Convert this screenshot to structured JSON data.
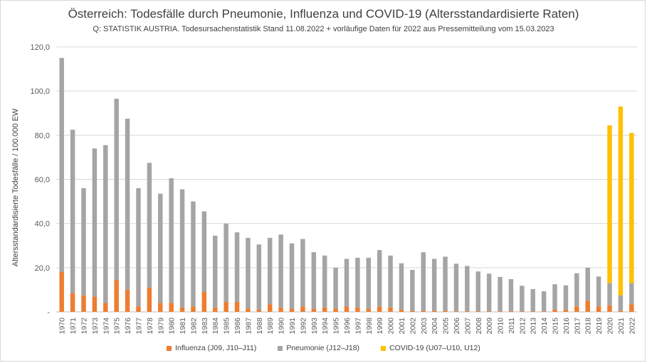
{
  "title": "Österreich: Todesfälle durch Pneumonie, Influenza und COVID-19 (Altersstandardisierte Raten)",
  "subtitle": "Q: STATISTIK AUSTRIA. Todesursachenstatistik Stand 11.08.2022 + vorläufige Daten für 2022 aus Pressemitteilung vom 15.03.2023",
  "chart_data": {
    "type": "bar",
    "stacked": true,
    "ylabel": "Altersstandardisierte Todesfälle / 100.000 EW",
    "xlabel": "",
    "ylim": [
      0,
      120
    ],
    "yticks": [
      "-",
      "20,0",
      "40,0",
      "60,0",
      "80,0",
      "100,0",
      "120,0"
    ],
    "grid": true,
    "legend_position": "bottom",
    "categories": [
      "1970",
      "1971",
      "1972",
      "1973",
      "1974",
      "1975",
      "1976",
      "1977",
      "1978",
      "1979",
      "1980",
      "1981",
      "1982",
      "1983",
      "1984",
      "1985",
      "1986",
      "1987",
      "1988",
      "1989",
      "1990",
      "1991",
      "1992",
      "1993",
      "1994",
      "1995",
      "1996",
      "1997",
      "1998",
      "1999",
      "2000",
      "2001",
      "2002",
      "2003",
      "2004",
      "2005",
      "2006",
      "2007",
      "2008",
      "2009",
      "2010",
      "2011",
      "2012",
      "2013",
      "2014",
      "2015",
      "2016",
      "2017",
      "2018",
      "2019",
      "2020",
      "2021",
      "2022"
    ],
    "series": [
      {
        "name": "Influenza (J09, J10–J11)",
        "color": "#ed7d31",
        "values": [
          18.0,
          8.5,
          7.5,
          7.0,
          4.0,
          14.5,
          10.0,
          2.5,
          11.0,
          4.0,
          4.0,
          2.0,
          2.5,
          9.0,
          2.0,
          4.5,
          4.5,
          1.5,
          1.0,
          3.5,
          2.0,
          1.5,
          2.5,
          1.5,
          2.0,
          1.5,
          2.5,
          2.0,
          1.5,
          2.5,
          2.0,
          1.0,
          0.5,
          0.5,
          0.5,
          0.5,
          0.3,
          0.3,
          0.3,
          0.3,
          0.3,
          0.3,
          0.3,
          0.3,
          0.3,
          1.0,
          1.0,
          2.5,
          5.0,
          2.5,
          3.0,
          0.5,
          3.5
        ]
      },
      {
        "name": "Pneumonie (J12–J18)",
        "color": "#a5a5a5",
        "values": [
          97.0,
          74.0,
          48.5,
          67.0,
          71.5,
          82.0,
          77.5,
          53.5,
          56.5,
          49.5,
          56.5,
          53.5,
          47.5,
          36.5,
          32.5,
          35.5,
          31.5,
          32.0,
          29.5,
          30.0,
          33.0,
          29.5,
          30.5,
          25.5,
          23.5,
          18.5,
          21.5,
          22.5,
          23.0,
          25.5,
          23.5,
          21.0,
          18.5,
          26.5,
          23.5,
          24.5,
          21.5,
          20.5,
          18.0,
          17.0,
          15.5,
          14.5,
          11.5,
          10.0,
          9.0,
          11.5,
          11.0,
          15.0,
          15.0,
          13.5,
          10.0,
          7.0,
          9.5
        ]
      },
      {
        "name": "COVID-19 (U07–U10, U12)",
        "color": "#ffc000",
        "values": [
          0,
          0,
          0,
          0,
          0,
          0,
          0,
          0,
          0,
          0,
          0,
          0,
          0,
          0,
          0,
          0,
          0,
          0,
          0,
          0,
          0,
          0,
          0,
          0,
          0,
          0,
          0,
          0,
          0,
          0,
          0,
          0,
          0,
          0,
          0,
          0,
          0,
          0,
          0,
          0,
          0,
          0,
          0,
          0,
          0,
          0,
          0,
          0,
          0,
          0,
          71.5,
          85.5,
          68.0
        ]
      }
    ]
  }
}
